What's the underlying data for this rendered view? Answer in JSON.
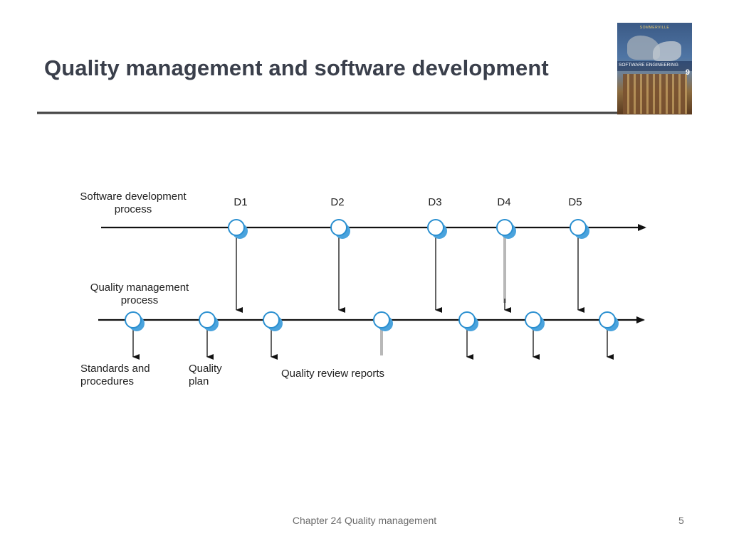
{
  "slide": {
    "title": "Quality management and software development",
    "footer": "Chapter 24 Quality management",
    "page_number": "5"
  },
  "cover": {
    "author": "SOMMERVILLE",
    "title": "SOFTWARE ENGINEERING",
    "edition": "9"
  },
  "diagram": {
    "dev_process_label": [
      "Software development",
      "process"
    ],
    "qm_process_label": [
      "Quality management",
      "process"
    ],
    "deliverables": [
      "D1",
      "D2",
      "D3",
      "D4",
      "D5"
    ],
    "outputs": {
      "standards": [
        "Standards and",
        "procedures"
      ],
      "plan": [
        "Quality",
        "plan"
      ],
      "reviews": "Quality review reports"
    },
    "colors": {
      "line": "#111111",
      "node_fill": "#ffffff",
      "node_stroke": "#2a8fd0",
      "node_shadow": "#4aa3dd",
      "highlight_arrow": "#b8b8b8"
    }
  }
}
